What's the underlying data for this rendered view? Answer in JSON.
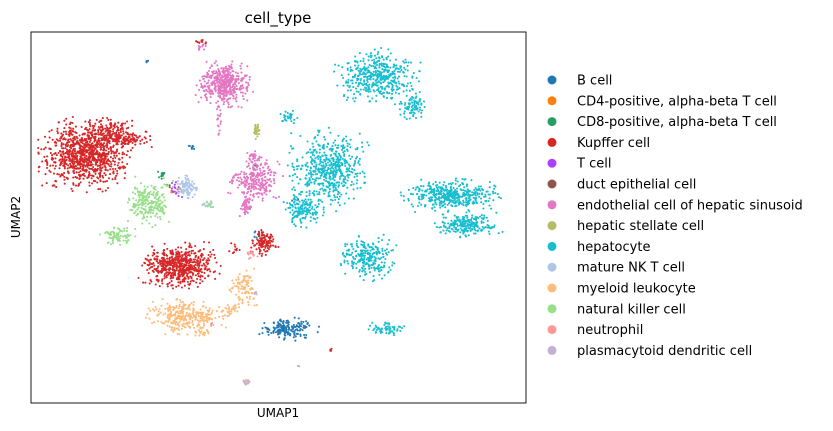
{
  "chart_data": {
    "type": "scatter",
    "title": "cell_type",
    "xlabel": "UMAP1",
    "ylabel": "UMAP2",
    "xlim": [
      0,
      100
    ],
    "ylim": [
      0,
      100
    ],
    "grid": false,
    "ticks": false,
    "legend_position": "right",
    "series": [
      {
        "name": "B cell",
        "color": "#1f77b4",
        "clusters": [
          {
            "cx": 52,
            "cy": 20,
            "rx": 5,
            "ry": 2.5,
            "n": 170
          },
          {
            "cx": 32.5,
            "cy": 69,
            "rx": 0.6,
            "ry": 0.8,
            "n": 8
          },
          {
            "cx": 23.5,
            "cy": 92,
            "rx": 0.3,
            "ry": 0.5,
            "n": 4
          },
          {
            "cx": 46,
            "cy": 45,
            "rx": 1.5,
            "ry": 1.5,
            "n": 8
          },
          {
            "cx": 54,
            "cy": 55,
            "rx": 1,
            "ry": 1,
            "n": 4
          }
        ]
      },
      {
        "name": "CD4-positive, alpha-beta T cell",
        "color": "#ff7f0e",
        "clusters": [
          {
            "cx": 28.5,
            "cy": 57,
            "rx": 0.6,
            "ry": 0.6,
            "n": 10
          }
        ]
      },
      {
        "name": "CD8-positive, alpha-beta T cell",
        "color": "#279e68",
        "clusters": [
          {
            "cx": 26.5,
            "cy": 61.5,
            "rx": 0.8,
            "ry": 0.8,
            "n": 14
          },
          {
            "cx": 45.5,
            "cy": 64,
            "rx": 0.4,
            "ry": 0.4,
            "n": 3
          }
        ]
      },
      {
        "name": "Kupffer cell",
        "color": "#d62728",
        "clusters": [
          {
            "cx": 11,
            "cy": 67,
            "rx": 7.5,
            "ry": 8,
            "n": 950
          },
          {
            "cx": 16,
            "cy": 73,
            "rx": 4.5,
            "ry": 4,
            "n": 150
          },
          {
            "cx": 20,
            "cy": 71,
            "rx": 3.5,
            "ry": 1.8,
            "n": 80
          },
          {
            "cx": 30,
            "cy": 37,
            "rx": 6.5,
            "ry": 5,
            "n": 600
          },
          {
            "cx": 47,
            "cy": 43,
            "rx": 2.5,
            "ry": 3,
            "n": 120
          },
          {
            "cx": 34.5,
            "cy": 97.5,
            "rx": 1,
            "ry": 0.6,
            "n": 10
          },
          {
            "cx": 41,
            "cy": 42,
            "rx": 1,
            "ry": 1.5,
            "n": 10
          },
          {
            "cx": 60.5,
            "cy": 14,
            "rx": 0.4,
            "ry": 0.6,
            "n": 4
          }
        ]
      },
      {
        "name": "T cell",
        "color": "#aa40fc",
        "clusters": [
          {
            "cx": 29.5,
            "cy": 57.5,
            "rx": 1.5,
            "ry": 2,
            "n": 18
          }
        ]
      },
      {
        "name": "duct epithelial cell",
        "color": "#8c564b",
        "clusters": [
          {
            "cx": 28,
            "cy": 58.5,
            "rx": 0.5,
            "ry": 0.5,
            "n": 3
          }
        ]
      },
      {
        "name": "endothelial cell of hepatic sinusoid",
        "color": "#e377c2",
        "clusters": [
          {
            "cx": 39,
            "cy": 86,
            "rx": 4.5,
            "ry": 5,
            "n": 480
          },
          {
            "cx": 45.5,
            "cy": 60,
            "rx": 4.5,
            "ry": 4.5,
            "n": 240
          },
          {
            "cx": 43.5,
            "cy": 53,
            "rx": 1.2,
            "ry": 2.5,
            "n": 60
          },
          {
            "cx": 38,
            "cy": 76,
            "rx": 0.6,
            "ry": 4,
            "n": 20
          },
          {
            "cx": 45,
            "cy": 66,
            "rx": 1.5,
            "ry": 1.5,
            "n": 30
          },
          {
            "cx": 34.5,
            "cy": 96,
            "rx": 1,
            "ry": 1,
            "n": 10
          }
        ]
      },
      {
        "name": "hepatic stellate cell",
        "color": "#b5bd61",
        "clusters": [
          {
            "cx": 45.5,
            "cy": 73.5,
            "rx": 0.6,
            "ry": 2,
            "n": 28
          },
          {
            "cx": 30,
            "cy": 58,
            "rx": 0.5,
            "ry": 0.6,
            "n": 4
          }
        ]
      },
      {
        "name": "hepatocyte",
        "color": "#17becf",
        "clusters": [
          {
            "cx": 60,
            "cy": 63,
            "rx": 6.5,
            "ry": 9,
            "n": 550
          },
          {
            "cx": 55,
            "cy": 52,
            "rx": 3.5,
            "ry": 4,
            "n": 150
          },
          {
            "cx": 70,
            "cy": 88,
            "rx": 7,
            "ry": 6,
            "n": 450
          },
          {
            "cx": 77,
            "cy": 80,
            "rx": 2.5,
            "ry": 3,
            "n": 80
          },
          {
            "cx": 85,
            "cy": 56,
            "rx": 8,
            "ry": 3.5,
            "n": 430
          },
          {
            "cx": 88,
            "cy": 48,
            "rx": 6,
            "ry": 3,
            "n": 220
          },
          {
            "cx": 68,
            "cy": 39,
            "rx": 5,
            "ry": 5,
            "n": 250
          },
          {
            "cx": 72,
            "cy": 20,
            "rx": 3.5,
            "ry": 1.5,
            "n": 60
          },
          {
            "cx": 52,
            "cy": 77,
            "rx": 1.5,
            "ry": 1.5,
            "n": 30
          }
        ]
      },
      {
        "name": "mature NK T cell",
        "color": "#aec7e8",
        "clusters": [
          {
            "cx": 31.5,
            "cy": 58.5,
            "rx": 2,
            "ry": 3,
            "n": 90
          },
          {
            "cx": 35.5,
            "cy": 53.5,
            "rx": 1.2,
            "ry": 1,
            "n": 12
          }
        ]
      },
      {
        "name": "myeloid leukocyte",
        "color": "#ffbb78",
        "clusters": [
          {
            "cx": 31,
            "cy": 23.5,
            "rx": 6.5,
            "ry": 4,
            "n": 300
          },
          {
            "cx": 43,
            "cy": 31,
            "rx": 2.5,
            "ry": 5,
            "n": 90
          },
          {
            "cx": 40,
            "cy": 25,
            "rx": 2,
            "ry": 1.5,
            "n": 30
          },
          {
            "cx": 43.5,
            "cy": 6,
            "rx": 0.8,
            "ry": 0.6,
            "n": 8
          },
          {
            "cx": 34.5,
            "cy": 19,
            "rx": 1.5,
            "ry": 2,
            "n": 20
          }
        ]
      },
      {
        "name": "natural killer cell",
        "color": "#98df8a",
        "clusters": [
          {
            "cx": 24,
            "cy": 54,
            "rx": 4,
            "ry": 5.5,
            "n": 230
          },
          {
            "cx": 17.5,
            "cy": 45,
            "rx": 2.8,
            "ry": 2.5,
            "n": 80
          },
          {
            "cx": 36,
            "cy": 53.5,
            "rx": 1,
            "ry": 0.8,
            "n": 10
          }
        ]
      },
      {
        "name": "neutrophil",
        "color": "#ff9896",
        "clusters": [
          {
            "cx": 44.5,
            "cy": 40,
            "rx": 1,
            "ry": 1,
            "n": 14
          },
          {
            "cx": 36.5,
            "cy": 21,
            "rx": 0.6,
            "ry": 0.6,
            "n": 4
          }
        ]
      },
      {
        "name": "plasmacytoid dendritic cell",
        "color": "#c5b0d5",
        "clusters": [
          {
            "cx": 43.5,
            "cy": 5.5,
            "rx": 0.8,
            "ry": 0.8,
            "n": 12
          },
          {
            "cx": 45.5,
            "cy": 29.5,
            "rx": 0.6,
            "ry": 0.6,
            "n": 5
          },
          {
            "cx": 54,
            "cy": 10,
            "rx": 0.3,
            "ry": 0.3,
            "n": 3
          }
        ]
      }
    ]
  }
}
